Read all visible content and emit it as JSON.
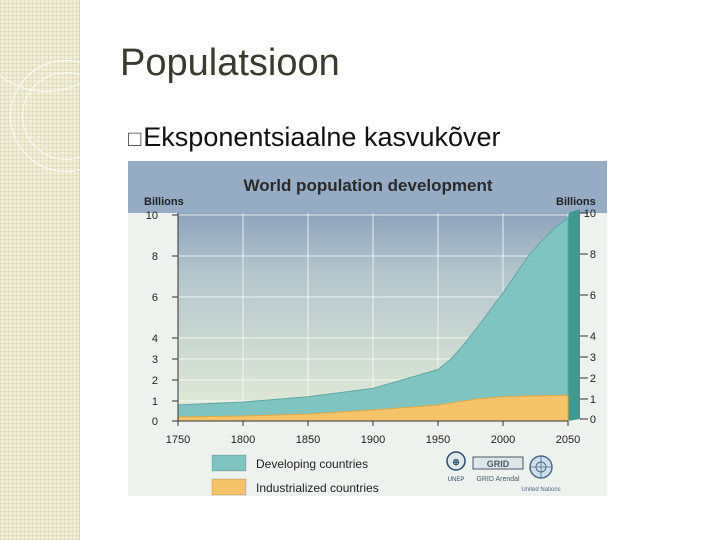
{
  "slide": {
    "title": "Populatsioon",
    "bullet_icon": "box-bullet",
    "bullet_text": "Eksponentsiaalne kasvukõver"
  },
  "chart_data": {
    "type": "area",
    "title": "World population development",
    "ylabel_left": "Billions",
    "ylabel_right": "Billions",
    "xlabel": "",
    "x_ticks": [
      1750,
      1800,
      1850,
      1900,
      1950,
      2000,
      2050
    ],
    "y_ticks_left": [
      0,
      1,
      2,
      3,
      4,
      6,
      8,
      10
    ],
    "y_ticks_right": [
      0,
      1,
      2,
      3,
      4,
      6,
      8,
      10
    ],
    "stacked": true,
    "x": [
      1750,
      1800,
      1850,
      1900,
      1950,
      1960,
      1970,
      1980,
      1990,
      2000,
      2010,
      2020,
      2030,
      2040,
      2050
    ],
    "series": [
      {
        "name": "Industrialized countries",
        "color": "#f5c36a",
        "values": [
          0.2,
          0.25,
          0.35,
          0.55,
          0.8,
          0.9,
          1.0,
          1.1,
          1.15,
          1.2,
          1.22,
          1.24,
          1.25,
          1.26,
          1.27
        ]
      },
      {
        "name": "Developing countries",
        "color": "#7fc4c0",
        "values": [
          0.6,
          0.7,
          0.85,
          1.05,
          1.7,
          2.1,
          2.7,
          3.4,
          4.2,
          5.0,
          5.9,
          6.8,
          7.5,
          8.1,
          8.6
        ]
      }
    ],
    "legend_position": "bottom",
    "grid": true,
    "logos": [
      "UNEP",
      "GRID Arendal",
      "United Nations"
    ]
  }
}
